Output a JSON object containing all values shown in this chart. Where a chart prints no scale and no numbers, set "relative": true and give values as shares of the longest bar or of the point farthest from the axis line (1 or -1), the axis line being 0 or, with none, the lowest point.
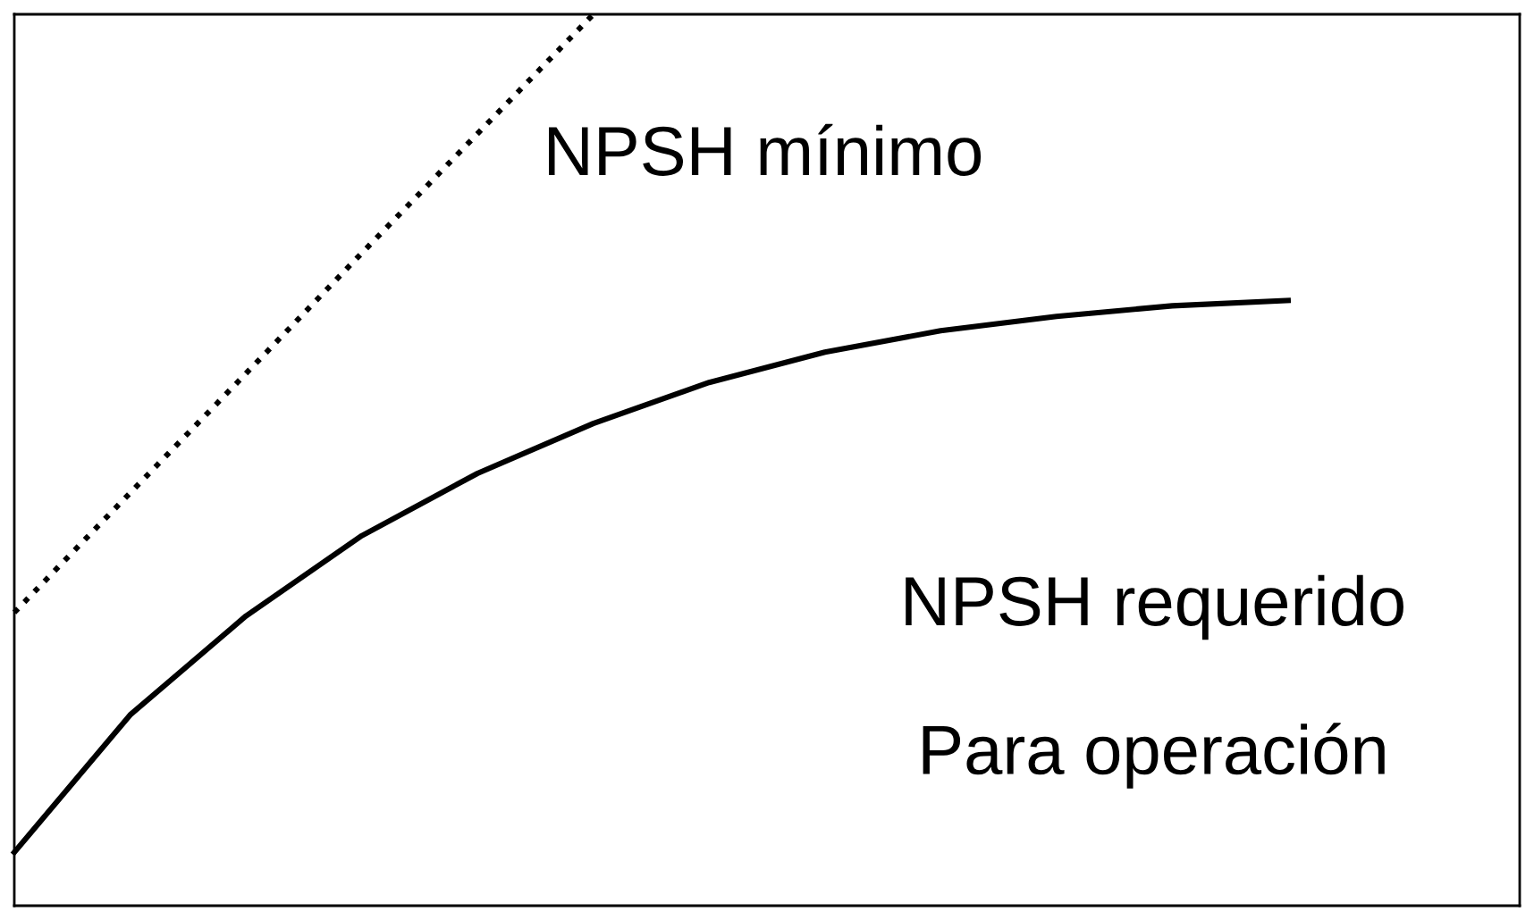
{
  "chart_data": {
    "type": "line",
    "relative": true,
    "categories": [
      null,
      null,
      null,
      null,
      null,
      null,
      null,
      null,
      null,
      null,
      null,
      null,
      null,
      null
    ],
    "series": [
      {
        "color": "#000000",
        "line_style": "dotted",
        "values": [
          0.329,
          0.463,
          0.597,
          0.732,
          0.866,
          1,
          null,
          null,
          null,
          null,
          null,
          null,
          null,
          null
        ]
      },
      {
        "color": "#000000",
        "line_style": "solid",
        "values": [
          0.06,
          0.214,
          0.325,
          0.415,
          0.485,
          0.541,
          0.587,
          0.621,
          0.645,
          0.661,
          0.673,
          0.679,
          null,
          null
        ]
      }
    ],
    "annotations": [
      "NPSH mínimo",
      "NPSH requerido",
      "Para operación"
    ],
    "grid": false,
    "legend": false
  }
}
